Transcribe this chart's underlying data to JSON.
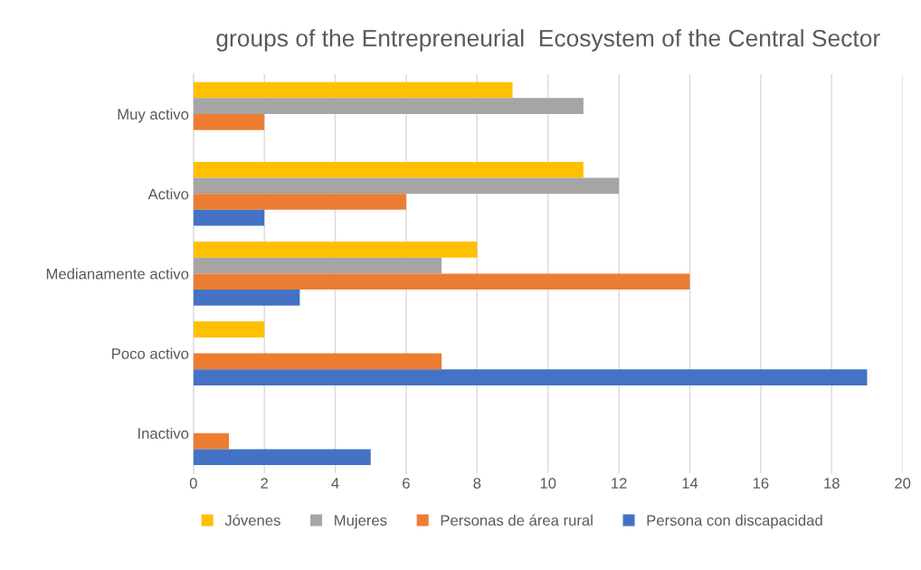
{
  "chart_data": {
    "type": "bar",
    "orientation": "horizontal",
    "title": "groups of the Entrepreneurial  Ecosystem of the Central Sector",
    "categories": [
      "Muy activo",
      "Activo",
      "Medianamente activo",
      "Poco activo",
      "Inactivo"
    ],
    "series": [
      {
        "name": "Jóvenes",
        "color": "#ffc000",
        "values": [
          9,
          11,
          8,
          2,
          0
        ]
      },
      {
        "name": "Mujeres",
        "color": "#a5a5a5",
        "values": [
          11,
          12,
          7,
          0,
          0
        ]
      },
      {
        "name": "Personas de área rural",
        "color": "#ed7d31",
        "values": [
          2,
          6,
          14,
          7,
          1
        ]
      },
      {
        "name": "Persona con discapacidad",
        "color": "#4472c4",
        "values": [
          0,
          2,
          3,
          19,
          5
        ]
      }
    ],
    "xlim": [
      0,
      20
    ],
    "xticks": [
      0,
      2,
      4,
      6,
      8,
      10,
      12,
      14,
      16,
      18,
      20
    ],
    "grid": "x",
    "legend": "bottom"
  }
}
